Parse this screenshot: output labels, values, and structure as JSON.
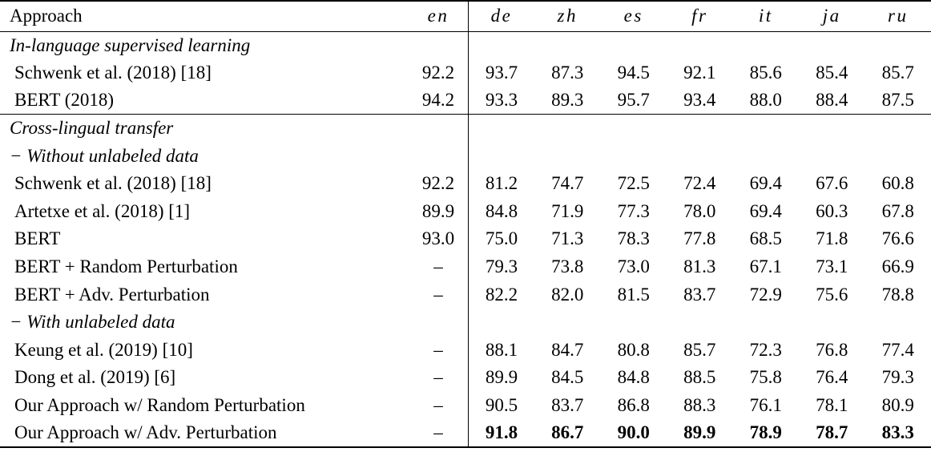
{
  "colors": {
    "text": "#000000",
    "rule": "#000000",
    "background": "#ffffff"
  },
  "table": {
    "columns": [
      "Approach",
      "en",
      "de",
      "zh",
      "es",
      "fr",
      "it",
      "ja",
      "ru"
    ],
    "groups": [
      {
        "rows": [
          {
            "type": "section",
            "label": "In-language supervised learning",
            "en": "",
            "values": [
              "",
              "",
              "",
              "",
              "",
              "",
              ""
            ]
          },
          {
            "type": "data",
            "label": "Schwenk et al. (2018) [18]",
            "en": "92.2",
            "values": [
              "93.7",
              "87.3",
              "94.5",
              "92.1",
              "85.6",
              "85.4",
              "85.7"
            ]
          },
          {
            "type": "data",
            "label": "BERT (2018)",
            "en": "94.2",
            "values": [
              "93.3",
              "89.3",
              "95.7",
              "93.4",
              "88.0",
              "88.4",
              "87.5"
            ]
          }
        ]
      },
      {
        "rows": [
          {
            "type": "section",
            "label": "Cross-lingual transfer",
            "en": "",
            "values": [
              "",
              "",
              "",
              "",
              "",
              "",
              ""
            ]
          },
          {
            "type": "section",
            "label": "− Without unlabeled data",
            "en": "",
            "values": [
              "",
              "",
              "",
              "",
              "",
              "",
              ""
            ]
          },
          {
            "type": "data",
            "label": "Schwenk et al. (2018) [18]",
            "en": "92.2",
            "values": [
              "81.2",
              "74.7",
              "72.5",
              "72.4",
              "69.4",
              "67.6",
              "60.8"
            ]
          },
          {
            "type": "data",
            "label": "Artetxe et al. (2018) [1]",
            "en": "89.9",
            "values": [
              "84.8",
              "71.9",
              "77.3",
              "78.0",
              "69.4",
              "60.3",
              "67.8"
            ]
          },
          {
            "type": "data",
            "label": "BERT",
            "en": "93.0",
            "values": [
              "75.0",
              "71.3",
              "78.3",
              "77.8",
              "68.5",
              "71.8",
              "76.6"
            ]
          },
          {
            "type": "data",
            "label": "BERT + Random Perturbation",
            "en": "–",
            "values": [
              "79.3",
              "73.8",
              "73.0",
              "81.3",
              "67.1",
              "73.1",
              "66.9"
            ]
          },
          {
            "type": "data",
            "label": "BERT + Adv. Perturbation",
            "en": "–",
            "values": [
              "82.2",
              "82.0",
              "81.5",
              "83.7",
              "72.9",
              "75.6",
              "78.8"
            ]
          },
          {
            "type": "section",
            "label": "− With unlabeled data",
            "en": "",
            "values": [
              "",
              "",
              "",
              "",
              "",
              "",
              ""
            ]
          },
          {
            "type": "data",
            "label": "Keung et al. (2019) [10]",
            "en": "–",
            "values": [
              "88.1",
              "84.7",
              "80.8",
              "85.7",
              "72.3",
              "76.8",
              "77.4"
            ]
          },
          {
            "type": "data",
            "label": "Dong et al. (2019) [6]",
            "en": "–",
            "values": [
              "89.9",
              "84.5",
              "84.8",
              "88.5",
              "75.8",
              "76.4",
              "79.3"
            ]
          },
          {
            "type": "data",
            "label": "Our Approach w/ Random Perturbation",
            "en": "–",
            "values": [
              "90.5",
              "83.7",
              "86.8",
              "88.3",
              "76.1",
              "78.1",
              "80.9"
            ]
          },
          {
            "type": "data",
            "label": "Our Approach w/ Adv. Perturbation",
            "en": "–",
            "bold_values": true,
            "values": [
              "91.8",
              "86.7",
              "90.0",
              "89.9",
              "78.9",
              "78.7",
              "83.3"
            ]
          }
        ]
      }
    ]
  }
}
